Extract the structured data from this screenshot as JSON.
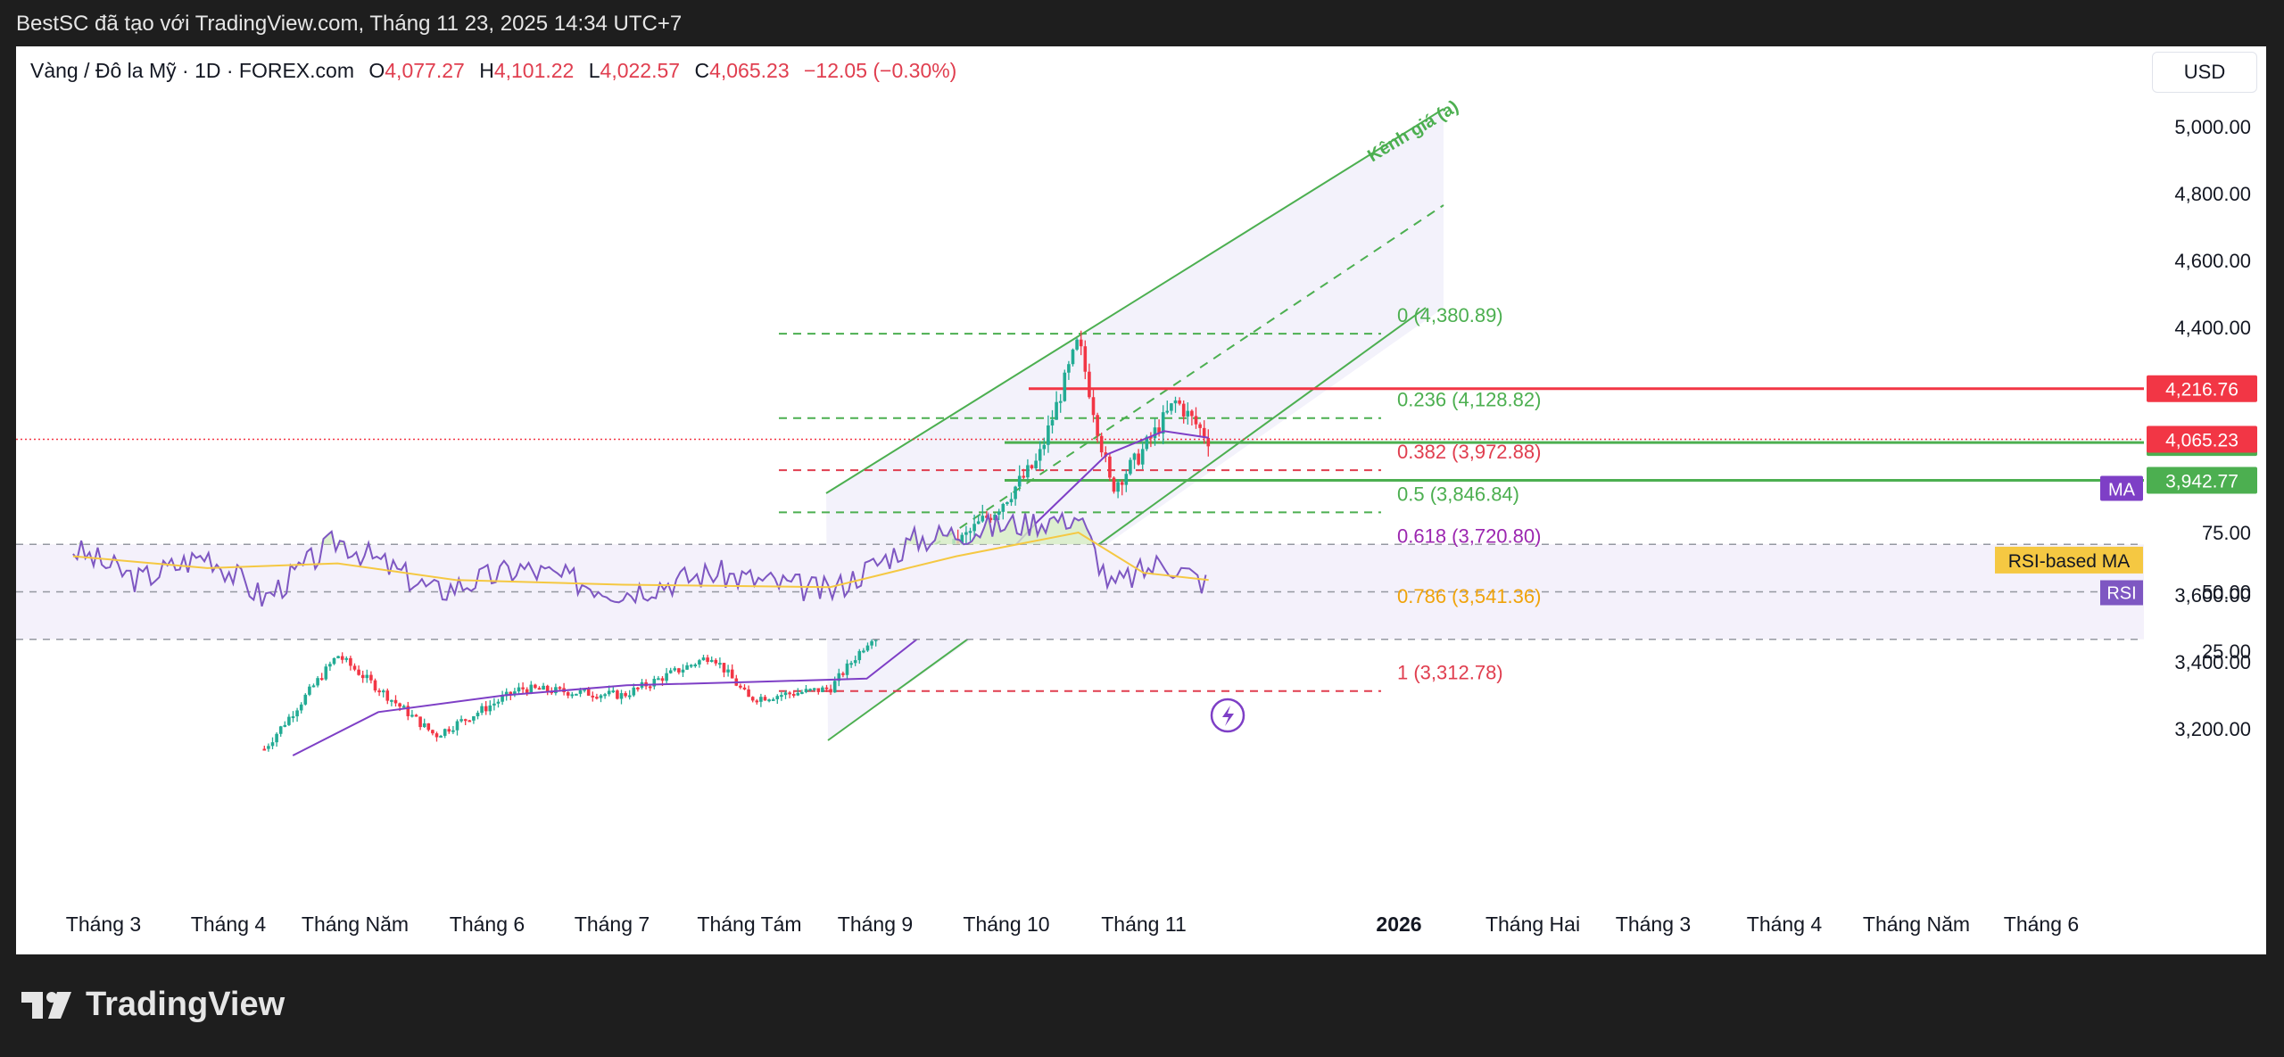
{
  "header": {
    "attribution": "BestSC đã tạo với TradingView.com, Tháng 11 23, 2025 14:34 UTC+7"
  },
  "legend": {
    "symbol": "Vàng / Đô la Mỹ · 1D · FOREX.com",
    "open_label": "O",
    "open": "4,077.27",
    "high_label": "H",
    "high": "4,101.22",
    "low_label": "L",
    "low": "4,022.57",
    "close_label": "C",
    "close": "4,065.23",
    "change": "−12.05 (−0.30%)"
  },
  "currency_button": "USD",
  "brand": {
    "name": "TradingView"
  },
  "colors": {
    "up": "#22ab94",
    "down": "#f23645",
    "ma": "#7e3fc6",
    "rsi": "#7e57c2",
    "rsi_ma": "#f5c842",
    "fib_green": "#4caf50",
    "fib_red": "#e03e4f",
    "fib_purple": "#9c27b0",
    "fib_orange": "#f0a30a"
  },
  "chart_data": [
    {
      "type": "candlestick",
      "title": "Vàng / Đô la Mỹ · 1D · FOREX.com",
      "x_ticks": [
        "Tháng 3",
        "Tháng 4",
        "Tháng Năm",
        "Tháng 6",
        "Tháng 7",
        "Tháng Tám",
        "Tháng 9",
        "Tháng 10",
        "Tháng 11",
        "2026",
        "Tháng Hai",
        "Tháng 3",
        "Tháng 4",
        "Tháng Năm",
        "Tháng 6"
      ],
      "y_ticks": [
        "5,000.00",
        "4,800.00",
        "4,600.00",
        "4,400.00",
        "3,600.00",
        "3,400.00",
        "3,200.00"
      ],
      "ylim": [
        3000,
        5120
      ],
      "price_series": [
        {
          "date": "2025-04-03",
          "price": 3140
        },
        {
          "date": "2025-04-21",
          "price": 3420
        },
        {
          "date": "2025-05-15",
          "price": 3180
        },
        {
          "date": "2025-06-05",
          "price": 3320
        },
        {
          "date": "2025-06-30",
          "price": 3300
        },
        {
          "date": "2025-07-22",
          "price": 3420
        },
        {
          "date": "2025-07-31",
          "price": 3290
        },
        {
          "date": "2025-08-20",
          "price": 3320
        },
        {
          "date": "2025-09-10",
          "price": 3640
        },
        {
          "date": "2025-09-30",
          "price": 3860
        },
        {
          "date": "2025-10-10",
          "price": 4000
        },
        {
          "date": "2025-10-20",
          "price": 4360
        },
        {
          "date": "2025-10-28",
          "price": 3920
        },
        {
          "date": "2025-11-03",
          "price": 4000
        },
        {
          "date": "2025-11-13",
          "price": 4180
        },
        {
          "date": "2025-11-21",
          "price": 4065
        }
      ],
      "ma_series": [
        {
          "date": "2025-04-10",
          "price": 3120
        },
        {
          "date": "2025-05-01",
          "price": 3250
        },
        {
          "date": "2025-06-01",
          "price": 3300
        },
        {
          "date": "2025-07-01",
          "price": 3330
        },
        {
          "date": "2025-08-01",
          "price": 3340
        },
        {
          "date": "2025-08-29",
          "price": 3350
        },
        {
          "date": "2025-09-20",
          "price": 3560
        },
        {
          "date": "2025-10-10",
          "price": 3820
        },
        {
          "date": "2025-10-27",
          "price": 4020
        },
        {
          "date": "2025-11-10",
          "price": 4090
        },
        {
          "date": "2025-11-21",
          "price": 4070
        }
      ],
      "fibonacci": [
        {
          "label": "0 (4,380.89)",
          "level": 4380.89,
          "color": "#4caf50"
        },
        {
          "label": "0.236 (4,128.82)",
          "level": 4128.82,
          "color": "#4caf50"
        },
        {
          "label": "0.382 (3,972.88)",
          "level": 3972.88,
          "color": "#e03e4f"
        },
        {
          "label": "0.5 (3,846.84)",
          "level": 3846.84,
          "color": "#4caf50"
        },
        {
          "label": "0.618 (3,720.80)",
          "level": 3720.8,
          "color": "#9c27b0"
        },
        {
          "label": "0.786 (3,541.36)",
          "level": 3541.36,
          "color": "#f0a30a"
        },
        {
          "label": "1 (3,312.78)",
          "level": 3312.78,
          "color": "#e03e4f"
        }
      ],
      "horizontal_levels": [
        {
          "label": "4,216.76",
          "price": 4216.76,
          "color": "#f23645"
        },
        {
          "label": "4,055.82",
          "price": 4055.82,
          "color": "#4caf50"
        },
        {
          "label": "3,942.77",
          "price": 3942.77,
          "color": "#4caf50"
        }
      ],
      "last_price": {
        "label": "4,065.23",
        "price": 4065.23
      },
      "ma_tag": "MA",
      "channel_label": "Kênh giá (a)"
    },
    {
      "type": "line",
      "y_ticks": [
        "75.00",
        "50.00",
        "25.00"
      ],
      "ylim": [
        25,
        80
      ],
      "bands": [
        70,
        50,
        30
      ],
      "rsi_series": [
        {
          "date": "2025-02-15",
          "value": 68
        },
        {
          "date": "2025-03-03",
          "value": 55
        },
        {
          "date": "2025-03-20",
          "value": 66
        },
        {
          "date": "2025-04-03",
          "value": 47
        },
        {
          "date": "2025-04-21",
          "value": 72
        },
        {
          "date": "2025-05-15",
          "value": 50
        },
        {
          "date": "2025-06-05",
          "value": 60
        },
        {
          "date": "2025-06-30",
          "value": 50
        },
        {
          "date": "2025-07-22",
          "value": 58
        },
        {
          "date": "2025-08-20",
          "value": 50
        },
        {
          "date": "2025-09-10",
          "value": 72
        },
        {
          "date": "2025-10-01",
          "value": 78
        },
        {
          "date": "2025-10-20",
          "value": 82
        },
        {
          "date": "2025-10-28",
          "value": 52
        },
        {
          "date": "2025-11-10",
          "value": 63
        },
        {
          "date": "2025-11-21",
          "value": 53
        }
      ],
      "rsi_ma_series": [
        {
          "date": "2025-02-15",
          "value": 65
        },
        {
          "date": "2025-03-20",
          "value": 60
        },
        {
          "date": "2025-04-21",
          "value": 62
        },
        {
          "date": "2025-05-20",
          "value": 55
        },
        {
          "date": "2025-06-30",
          "value": 53
        },
        {
          "date": "2025-08-20",
          "value": 52
        },
        {
          "date": "2025-09-20",
          "value": 65
        },
        {
          "date": "2025-10-20",
          "value": 75
        },
        {
          "date": "2025-11-05",
          "value": 58
        },
        {
          "date": "2025-11-21",
          "value": 55
        }
      ],
      "labels": {
        "rsi_ma": "RSI-based MA",
        "rsi": "RSI"
      }
    }
  ]
}
